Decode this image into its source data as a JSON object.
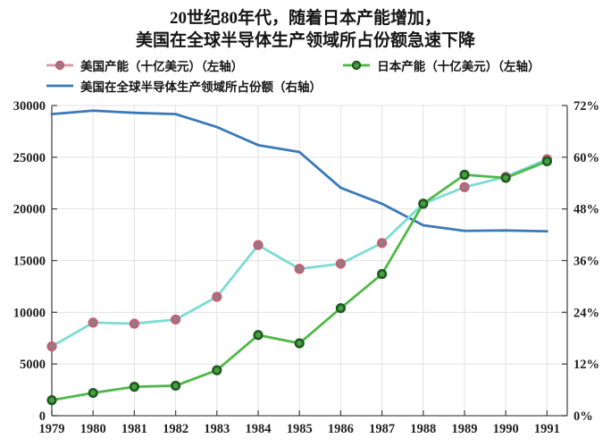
{
  "title": {
    "line1": "20世纪80年代，随着日本产能增加，",
    "line2": "美国在全球半导体生产领域所占份额急速下降"
  },
  "legend": {
    "us_capacity": "美国产能（十亿美元）（左轴）",
    "japan_capacity": "日本产能（十亿美元）（左轴）",
    "us_share": "美国在全球半导体生产领域所占份额（右轴）"
  },
  "colors": {
    "background": "#ffffff",
    "grid": "#e2e2e2",
    "spine": "#4a4a4a",
    "text": "#1f1f1f",
    "us_line": "#7cdcd3",
    "us_legend_line": "#d898a8",
    "us_marker_edge": "#c25f74",
    "us_marker_fill": "#8d7f84",
    "japan_line": "#4fb848",
    "japan_marker_edge": "#1f5c22",
    "japan_marker_fill": "#4a9e44",
    "share_line": "#3a79b8"
  },
  "chart_data": {
    "type": "line",
    "x": [
      1979,
      1980,
      1981,
      1982,
      1983,
      1984,
      1985,
      1986,
      1987,
      1988,
      1989,
      1990,
      1991
    ],
    "series": [
      {
        "id": "us-capacity",
        "name": "美国产能（十亿美元）",
        "axis": "left",
        "values": [
          6700,
          9000,
          8900,
          9300,
          11500,
          16500,
          14200,
          14700,
          16700,
          20500,
          22100,
          23100,
          24800
        ],
        "color": "#7cdcd3",
        "legend_line": "#d898a8",
        "marker": true,
        "marker_edge": "#c25f74",
        "marker_fill": "#8d7f84"
      },
      {
        "id": "japan-capacity",
        "name": "日本产能（十亿美元）",
        "axis": "left",
        "values": [
          1500,
          2200,
          2800,
          2900,
          4400,
          7800,
          7000,
          10400,
          13700,
          20500,
          23300,
          23000,
          24600
        ],
        "color": "#4fb848",
        "legend_line": "#4fb848",
        "marker": true,
        "marker_edge": "#1f5c22",
        "marker_fill": "#4a9e44"
      },
      {
        "id": "us-share",
        "name": "美国在全球半导体生产领域所占份额",
        "axis": "right",
        "values": [
          70.0,
          70.8,
          70.3,
          70.0,
          67.0,
          62.8,
          61.2,
          52.9,
          49.2,
          44.2,
          42.9,
          43.0,
          42.8
        ],
        "color": "#3a79b8",
        "legend_line": "#3a79b8",
        "marker": false
      }
    ],
    "left_axis": {
      "min": 0,
      "max": 30000,
      "ticks": [
        0,
        5000,
        10000,
        15000,
        20000,
        25000,
        30000
      ]
    },
    "right_axis": {
      "min": 0,
      "max": 72,
      "ticks": [
        0,
        12,
        24,
        36,
        48,
        60,
        72
      ],
      "labels": [
        "0%",
        "12%",
        "24%",
        "36%",
        "48%",
        "60%",
        "72%"
      ]
    },
    "grid": true,
    "legend_position": "top"
  }
}
